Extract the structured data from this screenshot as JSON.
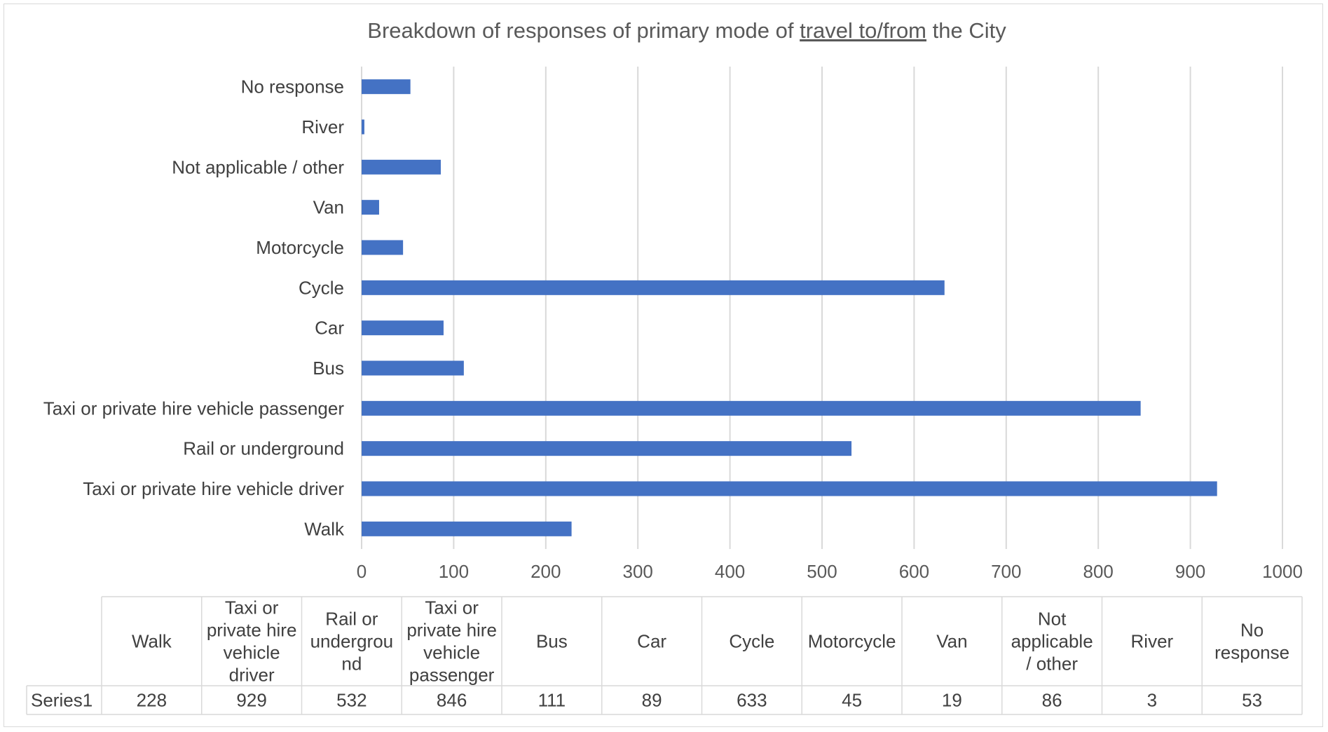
{
  "chart_data": {
    "type": "bar",
    "orientation": "horizontal",
    "title_prefix": "Breakdown of responses of primary mode of ",
    "title_underlined": "travel to/from",
    "title_suffix": " the City",
    "categories": [
      "Walk",
      "Taxi or private hire vehicle driver",
      "Rail or underground",
      "Taxi or private hire vehicle passenger",
      "Bus",
      "Car",
      "Cycle",
      "Motorcycle",
      "Van",
      "Not applicable / other",
      "River",
      "No response"
    ],
    "table_headers": [
      [
        "Walk"
      ],
      [
        "Taxi or",
        "private hire",
        "vehicle",
        "driver"
      ],
      [
        "Rail or",
        "undergrou",
        "nd"
      ],
      [
        "Taxi or",
        "private hire",
        "vehicle",
        "passenger"
      ],
      [
        "Bus"
      ],
      [
        "Car"
      ],
      [
        "Cycle"
      ],
      [
        "Motorcycle"
      ],
      [
        "Van"
      ],
      [
        "Not",
        "applicable",
        "/ other"
      ],
      [
        "River"
      ],
      [
        "No",
        "response"
      ]
    ],
    "series": [
      {
        "name": "Series1",
        "values": [
          228,
          929,
          532,
          846,
          111,
          89,
          633,
          45,
          19,
          86,
          3,
          53
        ]
      }
    ],
    "xlim": [
      0,
      1000
    ],
    "xticks": [
      0,
      100,
      200,
      300,
      400,
      500,
      600,
      700,
      800,
      900,
      1000
    ],
    "grid": true,
    "data_table": true,
    "bar_color": "#4472c4"
  }
}
